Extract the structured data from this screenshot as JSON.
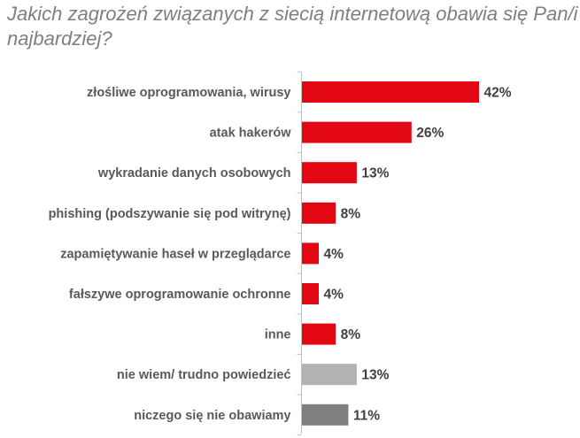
{
  "chart_data": {
    "type": "bar",
    "orientation": "horizontal",
    "title": "Jakich zagrożeń związanych z siecią internetową obawia się Pan/i najbardziej?",
    "categories": [
      "złośliwe oprogramowania, wirusy",
      "atak hakerów",
      "wykradanie danych osobowych",
      "phishing (podszywanie się pod witrynę)",
      "zapamiętywanie haseł w przeglądarce",
      "fałszywe oprogramowanie ochronne",
      "inne",
      "nie wiem/ trudno powiedzieć",
      "niczego się nie obawiamy"
    ],
    "values": [
      42,
      26,
      13,
      8,
      4,
      4,
      8,
      13,
      11
    ],
    "value_labels": [
      "42%",
      "26%",
      "13%",
      "8%",
      "4%",
      "4%",
      "8%",
      "13%",
      "11%"
    ],
    "bar_colors": [
      "#e30613",
      "#e30613",
      "#e30613",
      "#e30613",
      "#e30613",
      "#e30613",
      "#e30613",
      "#b2b2b2",
      "#7f7f7f"
    ],
    "axis_color": "#bfbfbf",
    "grid": false,
    "legend": "none"
  }
}
